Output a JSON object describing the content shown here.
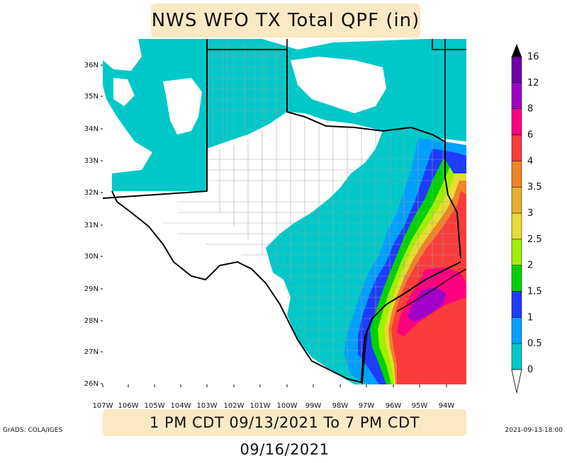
{
  "title": "NWS WFO TX Total QPF (in)",
  "valid_period": "1 PM CDT 09/13/2021 To 7 PM CDT 09/16/2021",
  "credit": "GrADS: COLA/IGES",
  "timestamp": "2021-09-13-18:00",
  "lat_labels": [
    "36N",
    "35N",
    "34N",
    "33N",
    "32N",
    "31N",
    "30N",
    "29N",
    "28N",
    "27N",
    "26N"
  ],
  "lon_labels": [
    "107W",
    "106W",
    "105W",
    "104W",
    "103W",
    "102W",
    "101W",
    "100W",
    "99W",
    "98W",
    "97W",
    "96W",
    "95W",
    "94W"
  ],
  "legend": {
    "levels": [
      "0",
      "0.5",
      "1",
      "1.5",
      "2",
      "2.5",
      "3",
      "3.5",
      "4",
      "6",
      "8",
      "12",
      "16"
    ],
    "colors": [
      "#00c8c8",
      "#00a0ff",
      "#1e3cff",
      "#00d200",
      "#a0f000",
      "#e6dc32",
      "#e6af2d",
      "#f08228",
      "#fa3c3c",
      "#ff0080",
      "#a000c8",
      "#6e00aa",
      "#000000"
    ]
  },
  "map_colors": {
    "outside": "#00c8c8",
    "texas_fill": "#ffffff",
    "light_blue": "#00a0ff",
    "blue": "#1e3cff",
    "green": "#00d200",
    "lime": "#a0f000",
    "yellow": "#e6dc32",
    "orange": "#f08228",
    "red": "#fa3c3c",
    "magenta": "#ff0080",
    "purple": "#a000c8"
  }
}
